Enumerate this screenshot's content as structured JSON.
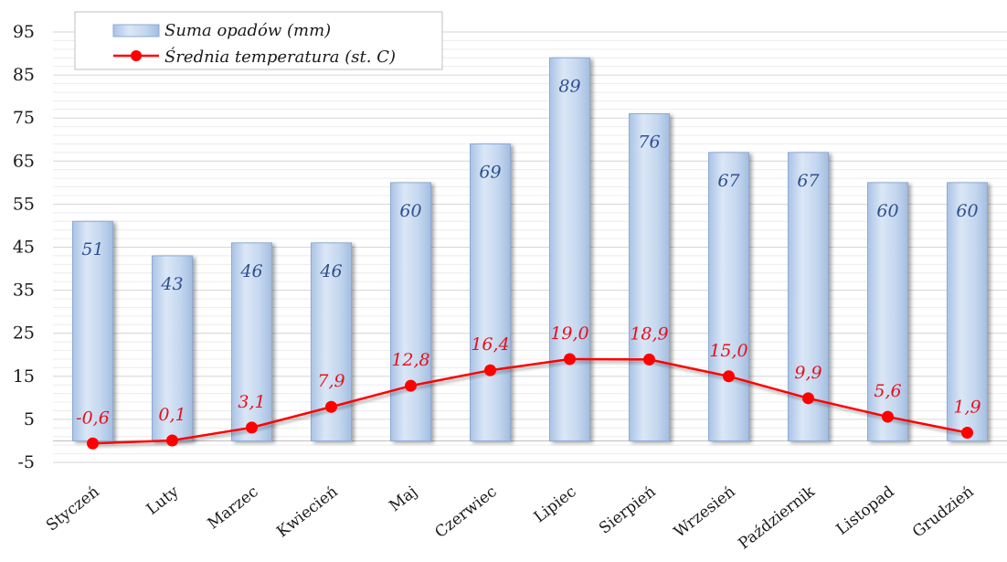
{
  "chart_data": {
    "type": "bar+line",
    "categories": [
      "Styczeń",
      "Luty",
      "Marzec",
      "Kwiecień",
      "Maj",
      "Czerwiec",
      "Lipiec",
      "Sierpień",
      "Wrzesień",
      "Październik",
      "Listopad",
      "Grudzień"
    ],
    "series": [
      {
        "name": "Suma opadów (mm)",
        "type": "bar",
        "values": [
          51,
          43,
          46,
          46,
          60,
          69,
          89,
          76,
          67,
          67,
          60,
          60
        ],
        "labels": [
          "51",
          "43",
          "46",
          "46",
          "60",
          "69",
          "89",
          "76",
          "67",
          "67",
          "60",
          "60"
        ],
        "color": "#c6d9f1"
      },
      {
        "name": "Średnia temperatura (st. C)",
        "type": "line",
        "values": [
          -0.6,
          0.1,
          3.1,
          7.9,
          12.8,
          16.4,
          19.0,
          18.9,
          15.0,
          9.9,
          5.6,
          1.9
        ],
        "labels": [
          "-0,6",
          "0,1",
          "3,1",
          "7,9",
          "12,8",
          "16,4",
          "19,0",
          "18,9",
          "15,0",
          "9,9",
          "5,6",
          "1,9"
        ],
        "color": "#ff0000"
      }
    ],
    "yticks": [
      "95",
      "85",
      "75",
      "65",
      "55",
      "45",
      "35",
      "25",
      "15",
      "5",
      "-5"
    ],
    "ylim": [
      -5,
      95
    ],
    "grid": true,
    "legend": "top-left"
  }
}
